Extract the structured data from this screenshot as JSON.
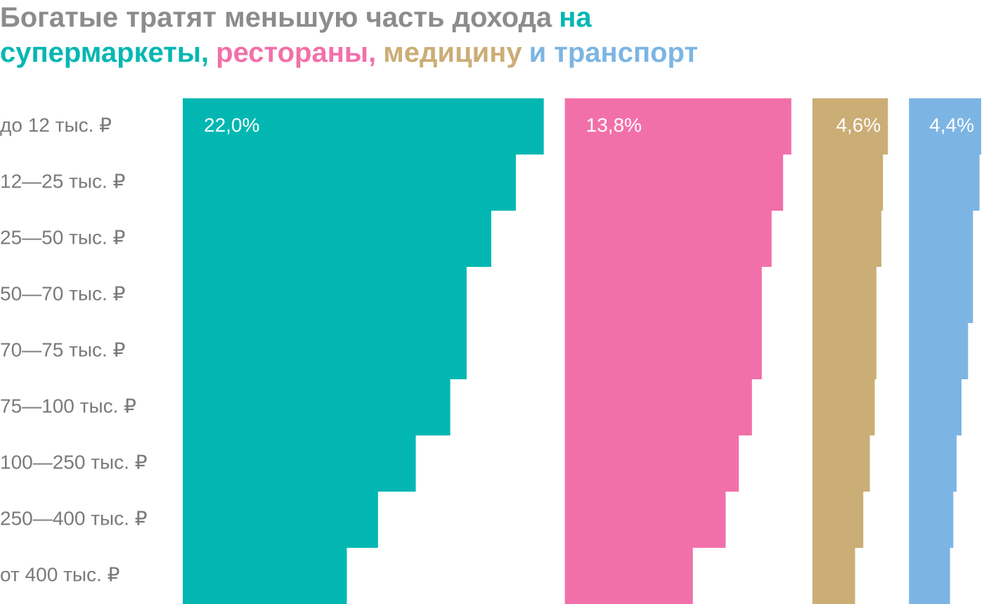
{
  "chart_data": {
    "type": "bar",
    "title": "Богатые тратят меньшую часть дохода",
    "categories": [
      "до 12 тыс. ₽",
      "12—25 тыс. ₽",
      "25—50 тыс. ₽",
      "50—70 тыс. ₽",
      "70—75 тыс. ₽",
      "75—100 тыс. ₽",
      "100—250 тыс. ₽",
      "250—400 тыс. ₽",
      "от 400 тыс. ₽"
    ],
    "series": [
      {
        "name": "на супермаркеты,",
        "color": "#02b7b2",
        "values": [
          22.0,
          20.3,
          18.8,
          17.3,
          17.3,
          16.3,
          14.2,
          11.9,
          10.0
        ],
        "value_labels": [
          "22,0%",
          null,
          null,
          null,
          null,
          null,
          null,
          null,
          null
        ]
      },
      {
        "name": "рестораны,",
        "color": "#f270aa",
        "values": [
          13.8,
          13.3,
          12.6,
          12.0,
          12.0,
          11.4,
          10.6,
          9.8,
          7.8
        ],
        "value_labels": [
          "13,8%",
          null,
          null,
          null,
          null,
          null,
          null,
          null,
          null
        ]
      },
      {
        "name": "медицину",
        "color": "#cbad76",
        "values": [
          4.6,
          4.3,
          4.2,
          3.9,
          3.9,
          3.8,
          3.5,
          3.1,
          2.6
        ],
        "value_labels": [
          "4,6%",
          null,
          null,
          null,
          null,
          null,
          null,
          null,
          null
        ]
      },
      {
        "name": "и транспорт",
        "color": "#7cb5e3",
        "values": [
          4.4,
          4.3,
          3.9,
          3.9,
          3.6,
          3.2,
          2.9,
          2.7,
          2.5
        ],
        "value_labels": [
          "4,4%",
          null,
          null,
          null,
          null,
          null,
          null,
          null,
          null
        ]
      }
    ]
  }
}
